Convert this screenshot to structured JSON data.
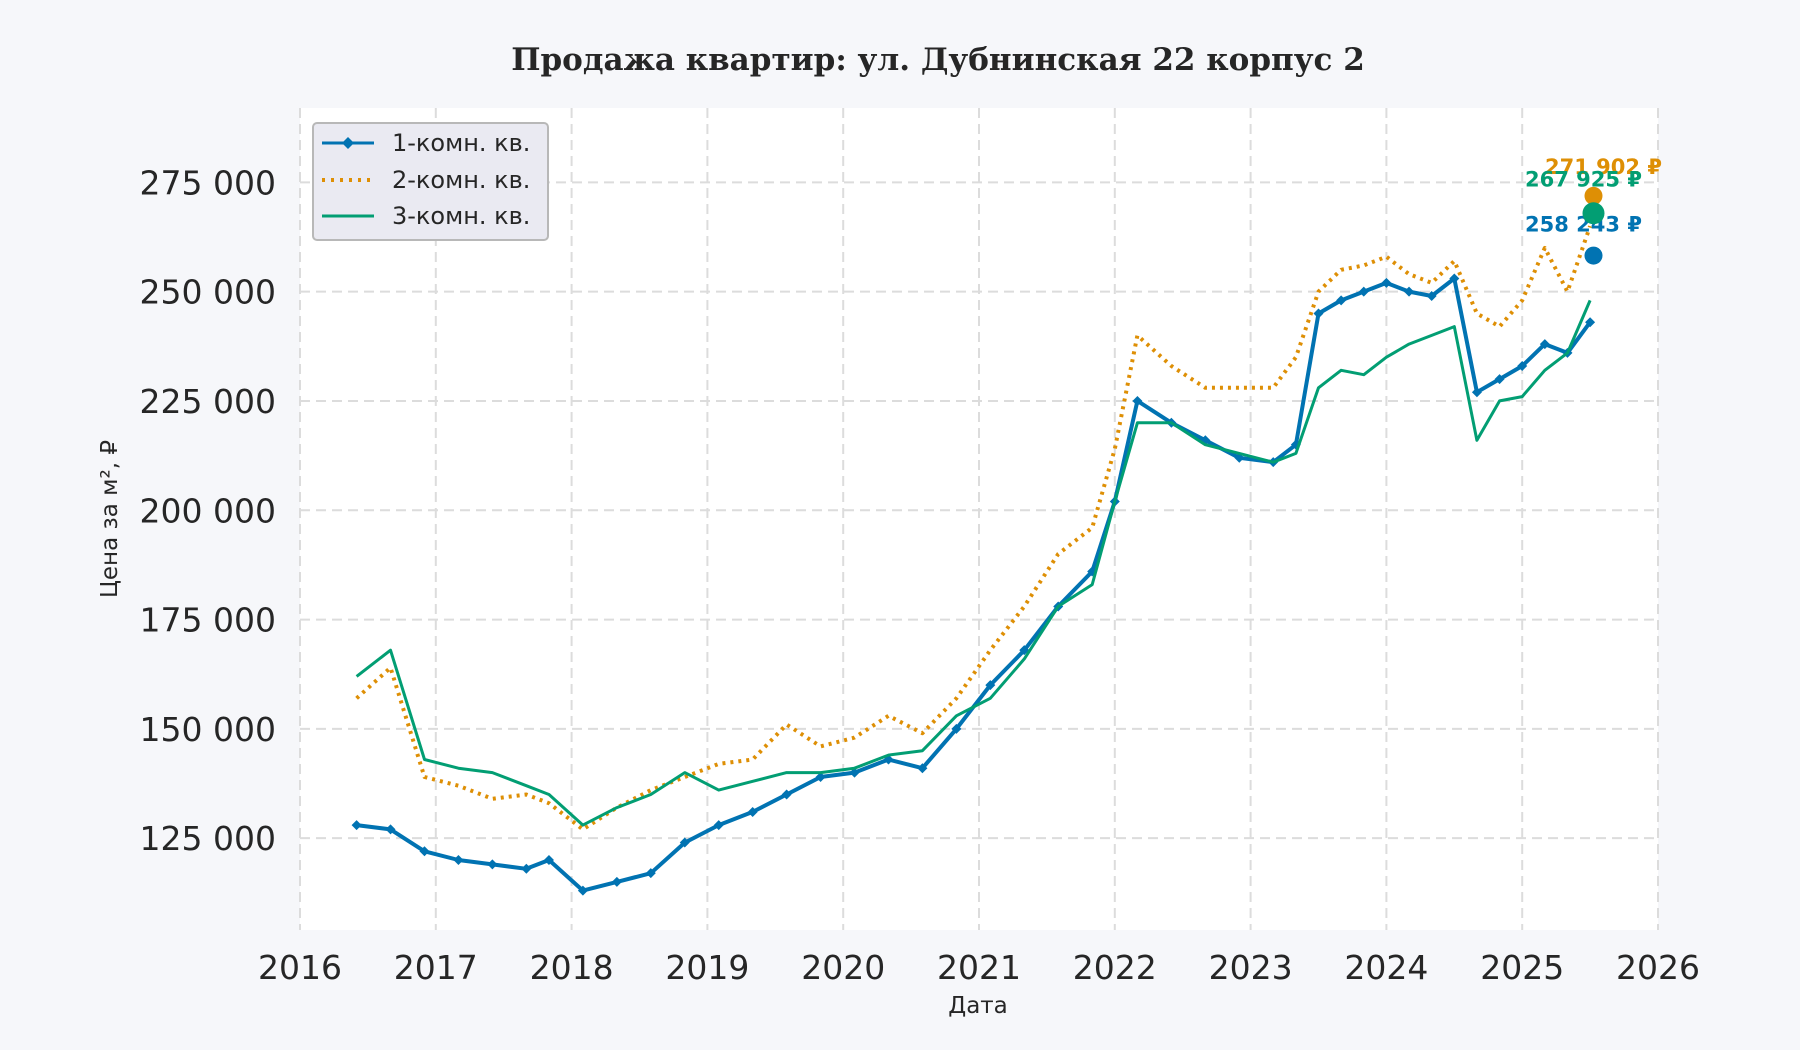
{
  "chart_data": {
    "type": "line",
    "title": "Продажа квартир: ул. Дубнинская 22 корпус 2",
    "xlabel": "Дата",
    "ylabel": "Цена за м², ₽",
    "xlim": [
      "2016-01-01",
      "2026-01-01"
    ],
    "ylim": [
      104000,
      292000
    ],
    "x_ticks": [
      "2016",
      "2017",
      "2018",
      "2019",
      "2020",
      "2021",
      "2022",
      "2023",
      "2024",
      "2025",
      "2026"
    ],
    "y_ticks": [
      {
        "value": 125000,
        "label": "125 000"
      },
      {
        "value": 150000,
        "label": "150 000"
      },
      {
        "value": 175000,
        "label": "175 000"
      },
      {
        "value": 200000,
        "label": "200 000"
      },
      {
        "value": 225000,
        "label": "225 000"
      },
      {
        "value": 250000,
        "label": "250 000"
      },
      {
        "value": 275000,
        "label": "275 000"
      }
    ],
    "grid": true,
    "legend_position": "top-left",
    "series": [
      {
        "name": "1-комн. кв.",
        "color": "#0173b2",
        "style": "solid-diamond",
        "x": [
          "2016-06",
          "2016-09",
          "2016-12",
          "2017-03",
          "2017-06",
          "2017-09",
          "2017-11",
          "2018-02",
          "2018-05",
          "2018-08",
          "2018-11",
          "2019-02",
          "2019-05",
          "2019-08",
          "2019-11",
          "2020-02",
          "2020-05",
          "2020-08",
          "2020-11",
          "2021-02",
          "2021-05",
          "2021-08",
          "2021-11",
          "2022-01",
          "2022-03",
          "2022-06",
          "2022-09",
          "2022-12",
          "2023-03",
          "2023-05",
          "2023-07",
          "2023-09",
          "2023-11",
          "2024-01",
          "2024-03",
          "2024-05",
          "2024-07",
          "2024-09",
          "2024-11",
          "2025-01",
          "2025-03",
          "2025-05",
          "2025-07"
        ],
        "y": [
          128000,
          127000,
          122000,
          120000,
          119000,
          118000,
          120000,
          113000,
          115000,
          117000,
          124000,
          128000,
          131000,
          135000,
          139000,
          140000,
          143000,
          141000,
          150000,
          160000,
          168000,
          178000,
          186000,
          202000,
          225000,
          220000,
          216000,
          212000,
          211000,
          215000,
          245000,
          248000,
          250000,
          252000,
          250000,
          249000,
          253000,
          227000,
          230000,
          233000,
          238000,
          236000,
          243000
        ]
      },
      {
        "name": "2-комн. кв.",
        "color": "#de8f05",
        "style": "dotted",
        "x": [
          "2016-06",
          "2016-09",
          "2016-12",
          "2017-03",
          "2017-06",
          "2017-09",
          "2017-11",
          "2018-02",
          "2018-05",
          "2018-08",
          "2018-11",
          "2019-02",
          "2019-05",
          "2019-08",
          "2019-11",
          "2020-02",
          "2020-05",
          "2020-08",
          "2020-11",
          "2021-02",
          "2021-05",
          "2021-08",
          "2021-11",
          "2022-01",
          "2022-03",
          "2022-06",
          "2022-09",
          "2022-12",
          "2023-03",
          "2023-05",
          "2023-07",
          "2023-09",
          "2023-11",
          "2024-01",
          "2024-03",
          "2024-05",
          "2024-07",
          "2024-09",
          "2024-11",
          "2025-01",
          "2025-03",
          "2025-05",
          "2025-07"
        ],
        "y": [
          157000,
          164000,
          139000,
          137000,
          134000,
          135000,
          133000,
          127000,
          132000,
          136000,
          139000,
          142000,
          143000,
          151000,
          146000,
          148000,
          153000,
          149000,
          157000,
          168000,
          178000,
          190000,
          196000,
          214000,
          240000,
          233000,
          228000,
          228000,
          228000,
          235000,
          250000,
          255000,
          256000,
          258000,
          254000,
          252000,
          257000,
          245000,
          242000,
          248000,
          260000,
          250000,
          265000
        ]
      },
      {
        "name": "3-комн. кв.",
        "color": "#029e73",
        "style": "solid",
        "x": [
          "2016-06",
          "2016-09",
          "2016-12",
          "2017-03",
          "2017-06",
          "2017-09",
          "2017-11",
          "2018-02",
          "2018-05",
          "2018-08",
          "2018-11",
          "2019-02",
          "2019-05",
          "2019-08",
          "2019-11",
          "2020-02",
          "2020-05",
          "2020-08",
          "2020-11",
          "2021-02",
          "2021-05",
          "2021-08",
          "2021-11",
          "2022-01",
          "2022-03",
          "2022-06",
          "2022-09",
          "2022-12",
          "2023-03",
          "2023-05",
          "2023-07",
          "2023-09",
          "2023-11",
          "2024-01",
          "2024-03",
          "2024-05",
          "2024-07",
          "2024-09",
          "2024-11",
          "2025-01",
          "2025-03",
          "2025-05",
          "2025-07"
        ],
        "y": [
          162000,
          168000,
          143000,
          141000,
          140000,
          137000,
          135000,
          128000,
          132000,
          135000,
          140000,
          136000,
          138000,
          140000,
          140000,
          141000,
          144000,
          145000,
          153000,
          157000,
          166000,
          178000,
          183000,
          202000,
          220000,
          220000,
          215000,
          213000,
          211000,
          213000,
          228000,
          232000,
          231000,
          235000,
          238000,
          240000,
          242000,
          216000,
          225000,
          226000,
          232000,
          236000,
          248000
        ]
      }
    ],
    "end_points": [
      {
        "series": "1-комн. кв.",
        "date": "2025-07-10",
        "value": 258243,
        "label": "258 243 ₽",
        "color": "#0173b2"
      },
      {
        "series": "2-комн. кв.",
        "date": "2025-07-10",
        "value": 271902,
        "label": "271 902 ₽",
        "color": "#de8f05"
      },
      {
        "series": "3-комн. кв.",
        "date": "2025-07-10",
        "value": 267925,
        "label": "267 925 ₽",
        "color": "#029e73"
      }
    ]
  }
}
